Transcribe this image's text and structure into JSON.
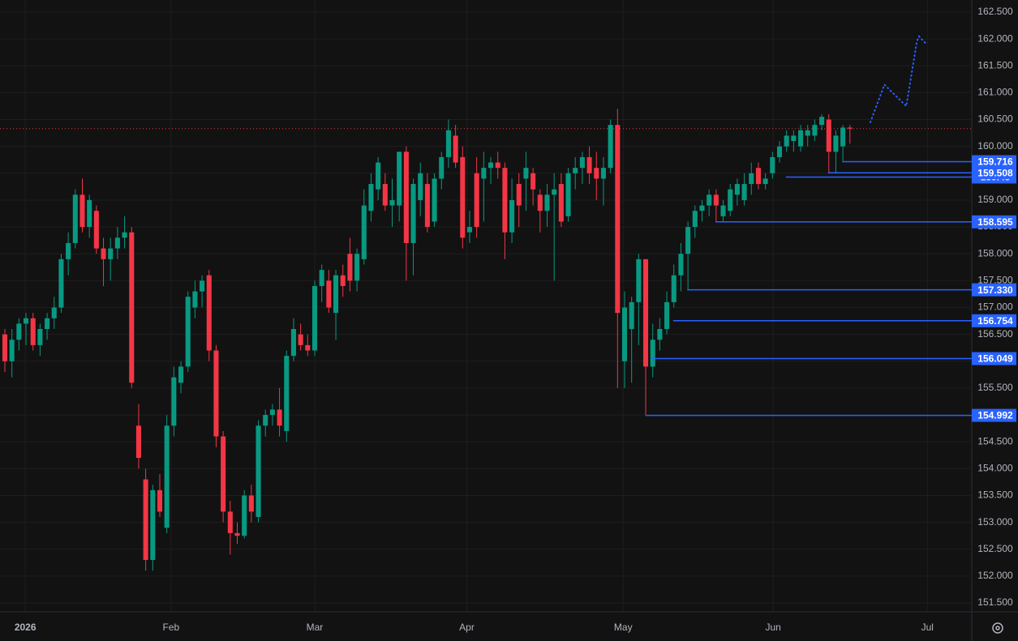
{
  "chart_data": {
    "type": "candlestick",
    "up_color": "#089981",
    "down_color": "#f23645",
    "level_color": "#2962ff",
    "last_price_color": "#f23645",
    "projection_color": "#2962ff",
    "grid": true,
    "xlim": [
      -0.69,
      137.3
    ],
    "ylim": [
      151.334,
      162.726
    ],
    "xticks": [
      {
        "value": 2.9,
        "label": "2026"
      },
      {
        "value": 23.6,
        "label": "Feb"
      },
      {
        "value": 44.0,
        "label": "Mar"
      },
      {
        "value": 65.6,
        "label": "Apr"
      },
      {
        "value": 87.8,
        "label": "May"
      },
      {
        "value": 109.1,
        "label": "Jun"
      },
      {
        "value": 131.0,
        "label": "Jul"
      }
    ],
    "yticks": [
      {
        "value": 151.5,
        "label": "151.500"
      },
      {
        "value": 152,
        "label": "152.000"
      },
      {
        "value": 152.5,
        "label": "152.500"
      },
      {
        "value": 153,
        "label": "153.000"
      },
      {
        "value": 153.5,
        "label": "153.500"
      },
      {
        "value": 154,
        "label": "154.000"
      },
      {
        "value": 154.5,
        "label": "154.500"
      },
      {
        "value": 155,
        "label": "155.000"
      },
      {
        "value": 155.5,
        "label": "155.500"
      },
      {
        "value": 156,
        "label": "156.000"
      },
      {
        "value": 156.5,
        "label": "156.500"
      },
      {
        "value": 157,
        "label": "157.000"
      },
      {
        "value": 157.5,
        "label": "157.500"
      },
      {
        "value": 158,
        "label": "158.000"
      },
      {
        "value": 158.5,
        "label": "158.500"
      },
      {
        "value": 159,
        "label": "159.000"
      },
      {
        "value": 159.5,
        "label": "159.500"
      },
      {
        "value": 160,
        "label": "160.000"
      },
      {
        "value": 160.5,
        "label": "160.500"
      },
      {
        "value": 161,
        "label": "161.000"
      },
      {
        "value": 161.5,
        "label": "161.500"
      },
      {
        "value": 162,
        "label": "162.000"
      },
      {
        "value": 162.5,
        "label": "162.500"
      }
    ],
    "candles": [
      [
        156.5,
        156.6,
        155.8,
        156.0
      ],
      [
        156.0,
        156.6,
        155.7,
        156.4
      ],
      [
        156.4,
        156.8,
        156.2,
        156.7
      ],
      [
        156.7,
        156.9,
        156.3,
        156.8
      ],
      [
        156.8,
        156.9,
        156.2,
        156.3
      ],
      [
        156.3,
        156.7,
        156.1,
        156.6
      ],
      [
        156.6,
        156.9,
        156.4,
        156.8
      ],
      [
        156.8,
        157.2,
        156.6,
        157.0
      ],
      [
        157.0,
        158.0,
        156.9,
        157.9
      ],
      [
        157.9,
        158.4,
        157.6,
        158.2
      ],
      [
        158.2,
        159.2,
        158.1,
        159.1
      ],
      [
        159.1,
        159.4,
        158.4,
        158.5
      ],
      [
        158.5,
        159.1,
        158.3,
        159.0
      ],
      [
        158.8,
        158.9,
        158.0,
        158.1
      ],
      [
        158.1,
        158.3,
        157.4,
        157.9
      ],
      [
        157.9,
        158.3,
        157.5,
        158.1
      ],
      [
        158.1,
        158.5,
        157.9,
        158.3
      ],
      [
        158.3,
        158.7,
        158.1,
        158.4
      ],
      [
        158.4,
        158.5,
        155.5,
        155.6
      ],
      [
        154.8,
        155.2,
        154.0,
        154.2
      ],
      [
        153.8,
        154.0,
        152.1,
        152.3
      ],
      [
        152.3,
        153.7,
        152.1,
        153.6
      ],
      [
        153.6,
        153.9,
        153.1,
        153.2
      ],
      [
        152.9,
        155.0,
        152.8,
        154.8
      ],
      [
        154.8,
        155.9,
        154.6,
        155.7
      ],
      [
        155.6,
        156.0,
        155.4,
        155.9
      ],
      [
        155.9,
        157.3,
        155.8,
        157.2
      ],
      [
        157.0,
        157.5,
        156.8,
        157.3
      ],
      [
        157.3,
        157.6,
        157.0,
        157.5
      ],
      [
        157.6,
        157.7,
        156.0,
        156.2
      ],
      [
        156.2,
        156.3,
        154.4,
        154.6
      ],
      [
        154.6,
        154.7,
        153.0,
        153.2
      ],
      [
        153.2,
        153.4,
        152.4,
        152.8
      ],
      [
        152.8,
        153.0,
        152.6,
        152.75
      ],
      [
        152.75,
        153.6,
        152.7,
        153.5
      ],
      [
        153.5,
        153.7,
        153.0,
        153.2
      ],
      [
        153.1,
        154.9,
        153.0,
        154.8
      ],
      [
        154.8,
        155.1,
        154.6,
        155.0
      ],
      [
        155.0,
        155.2,
        154.8,
        155.1
      ],
      [
        155.1,
        155.5,
        154.6,
        154.8
      ],
      [
        154.7,
        156.2,
        154.5,
        156.1
      ],
      [
        156.1,
        156.8,
        156.0,
        156.6
      ],
      [
        156.5,
        156.7,
        156.2,
        156.3
      ],
      [
        156.3,
        156.5,
        156.1,
        156.2
      ],
      [
        156.2,
        157.5,
        156.1,
        157.4
      ],
      [
        157.4,
        157.8,
        157.1,
        157.7
      ],
      [
        157.5,
        157.7,
        156.9,
        157.0
      ],
      [
        156.9,
        157.7,
        156.4,
        157.6
      ],
      [
        157.6,
        157.8,
        157.2,
        157.4
      ],
      [
        158.0,
        158.3,
        157.3,
        157.5
      ],
      [
        157.5,
        158.1,
        157.3,
        158.0
      ],
      [
        157.9,
        159.2,
        157.8,
        158.9
      ],
      [
        158.8,
        159.5,
        158.6,
        159.3
      ],
      [
        159.2,
        159.8,
        159.0,
        159.7
      ],
      [
        159.3,
        159.5,
        158.8,
        158.9
      ],
      [
        158.9,
        159.4,
        158.5,
        159.0
      ],
      [
        158.9,
        159.9,
        158.6,
        159.9
      ],
      [
        159.9,
        160.0,
        157.5,
        158.2
      ],
      [
        158.2,
        159.4,
        157.6,
        159.3
      ],
      [
        159.0,
        159.7,
        158.7,
        159.5
      ],
      [
        159.3,
        159.5,
        158.4,
        158.5
      ],
      [
        158.6,
        159.5,
        158.5,
        159.4
      ],
      [
        159.4,
        159.9,
        159.2,
        159.8
      ],
      [
        159.8,
        160.5,
        159.6,
        160.3
      ],
      [
        160.2,
        160.4,
        159.6,
        159.7
      ],
      [
        159.8,
        160.0,
        158.1,
        158.3
      ],
      [
        158.4,
        158.8,
        158.2,
        158.5
      ],
      [
        159.5,
        159.8,
        158.3,
        158.5
      ],
      [
        159.4,
        159.9,
        158.6,
        159.6
      ],
      [
        159.6,
        159.8,
        159.3,
        159.7
      ],
      [
        159.7,
        159.9,
        159.4,
        159.6
      ],
      [
        159.6,
        159.7,
        157.9,
        158.4
      ],
      [
        158.4,
        159.4,
        158.2,
        159.0
      ],
      [
        159.3,
        159.5,
        158.5,
        158.9
      ],
      [
        159.4,
        159.9,
        158.8,
        159.6
      ],
      [
        159.5,
        159.6,
        158.9,
        159.2
      ],
      [
        159.1,
        159.2,
        158.4,
        158.8
      ],
      [
        158.8,
        159.3,
        158.5,
        159.1
      ],
      [
        159.1,
        159.5,
        157.5,
        159.2
      ],
      [
        159.3,
        159.5,
        158.5,
        158.6
      ],
      [
        158.7,
        159.6,
        158.6,
        159.5
      ],
      [
        159.5,
        159.8,
        159.2,
        159.6
      ],
      [
        159.6,
        159.9,
        159.3,
        159.8
      ],
      [
        159.8,
        160.0,
        159.3,
        159.5
      ],
      [
        159.6,
        159.9,
        159.0,
        159.4
      ],
      [
        159.4,
        159.8,
        158.9,
        159.6
      ],
      [
        159.6,
        160.5,
        159.5,
        160.4
      ],
      [
        160.4,
        160.7,
        155.5,
        156.9
      ],
      [
        156.0,
        157.3,
        155.5,
        157.0
      ],
      [
        156.6,
        157.2,
        155.6,
        157.1
      ],
      [
        157.1,
        158.0,
        156.3,
        157.9
      ],
      [
        157.9,
        157.9,
        154.992,
        155.9
      ],
      [
        155.9,
        156.7,
        155.7,
        156.4
      ],
      [
        156.4,
        156.8,
        156.2,
        156.6
      ],
      [
        156.6,
        157.3,
        156.5,
        157.1
      ],
      [
        157.1,
        157.8,
        157.0,
        157.6
      ],
      [
        157.6,
        158.2,
        157.3,
        158.0
      ],
      [
        158.0,
        158.6,
        157.33,
        158.5
      ],
      [
        158.5,
        158.9,
        158.3,
        158.8
      ],
      [
        158.8,
        159.0,
        158.6,
        158.9
      ],
      [
        158.9,
        159.2,
        158.7,
        159.1
      ],
      [
        159.1,
        159.2,
        158.6,
        158.9
      ],
      [
        158.7,
        159.0,
        158.6,
        158.9
      ],
      [
        158.8,
        159.3,
        158.7,
        159.2
      ],
      [
        159.1,
        159.4,
        158.9,
        159.3
      ],
      [
        159.0,
        159.5,
        158.9,
        159.3
      ],
      [
        159.3,
        159.7,
        159.1,
        159.5
      ],
      [
        159.6,
        159.7,
        159.2,
        159.3
      ],
      [
        159.3,
        159.5,
        159.2,
        159.4
      ],
      [
        159.5,
        159.9,
        159.4,
        159.8
      ],
      [
        159.8,
        160.1,
        159.7,
        160.0
      ],
      [
        160.0,
        160.3,
        159.9,
        160.2
      ],
      [
        160.1,
        160.3,
        159.9,
        160.2
      ],
      [
        160.0,
        160.4,
        159.9,
        160.3
      ],
      [
        160.2,
        160.4,
        160.0,
        160.3
      ],
      [
        160.2,
        160.5,
        160.1,
        160.4
      ],
      [
        160.4,
        160.6,
        160.3,
        160.55
      ],
      [
        160.5,
        160.6,
        159.5,
        159.9
      ],
      [
        159.9,
        160.3,
        159.5,
        160.2
      ],
      [
        160.0,
        160.4,
        159.7,
        160.35
      ],
      [
        160.35,
        160.4,
        160.05,
        160.33
      ]
    ],
    "last_price": 160.33,
    "levels": [
      {
        "value": 154.992,
        "start": 91.0
      },
      {
        "value": 156.049,
        "start": 91.9
      },
      {
        "value": 156.754,
        "start": 94.9
      },
      {
        "value": {
          "value": 157.33,
          "label": "157.330"
        },
        "start": 96.9
      },
      {
        "value": 158.595,
        "start": 100.9
      },
      {
        "value": 159.43,
        "start": 110.9
      },
      {
        "value": 159.508,
        "start": 116.9
      },
      {
        "value": 159.716,
        "start": 119.0
      }
    ],
    "projection": {
      "x": [
        122.9,
        124.9,
        128.0,
        129.5,
        129.8,
        130.9
      ],
      "values": [
        160.45,
        161.15,
        160.75,
        161.95,
        162.05,
        161.9
      ]
    }
  }
}
